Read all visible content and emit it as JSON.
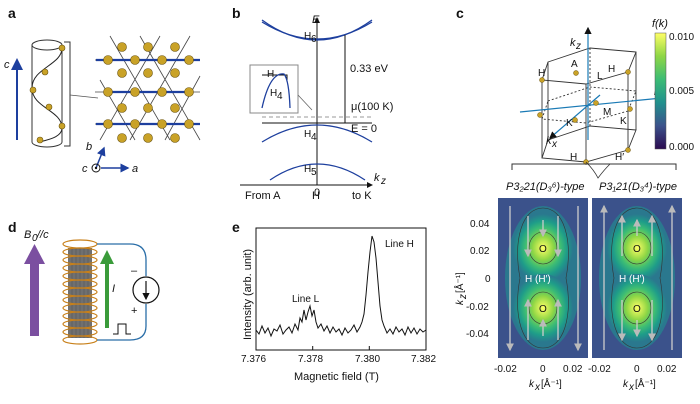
{
  "panels": {
    "a": {
      "label": "a",
      "axis_c": "c",
      "axis_b": "b",
      "axis_c2": "c",
      "axis_a": "a"
    },
    "b": {
      "label": "b",
      "energy_axis": "E",
      "kz_axis": "k",
      "kz_sub": "z",
      "band_H6": "H",
      "band_H6_sub": "6",
      "band_H4": "H",
      "band_H4_sub": "4",
      "band_H5": "H",
      "band_H5_sub": "5",
      "inset_H": "H",
      "inset_H4": "H",
      "inset_H4_sub": "4",
      "gap": "0.33 eV",
      "mu_label": "μ(100 K)",
      "zero_label": "E = 0",
      "zero_tick": "0",
      "from_label": "From A",
      "h_label": "H",
      "to_label": "to K"
    },
    "c": {
      "label": "c",
      "colorbar_title": "f(k)",
      "colorbar_ticks": [
        "0.010",
        "0.005",
        "0.000"
      ],
      "colors": [
        "#ffff66",
        "#8ed645",
        "#3cbc75",
        "#1e9c89",
        "#2a788e",
        "#3b528b",
        "#472c7a",
        "#2b0a4f"
      ],
      "bz_labels": {
        "kz": "k",
        "kz_sub": "z",
        "ky": "k",
        "ky_sub": "y",
        "kx": "k",
        "kx_sub": "x",
        "A": "A",
        "H1": "H",
        "H2": "H",
        "L": "L",
        "M": "M",
        "K1": "K",
        "K2": "K",
        "H3": "H",
        "Hp": "H′"
      },
      "map_left_title": "P3₂21(D₃⁶)-type",
      "map_right_title": "P3₁21(D₃⁴)-type",
      "center_label": "H (H′)",
      "contour_marker": "O",
      "y_ticks": [
        "0.04",
        "0.02",
        "0",
        "-0.02",
        "-0.04"
      ],
      "x_ticks": [
        "-0.02",
        "0",
        "0.02"
      ],
      "y_axis_label": "k",
      "y_axis_sub": "z",
      "y_axis_unit": "[Å⁻¹]",
      "x_axis_label": "k",
      "x_axis_sub": "x",
      "x_axis_unit": "[Å⁻¹]"
    },
    "d": {
      "label": "d",
      "field_label": "B",
      "field_sub": "0",
      "field_suffix": "//c",
      "current_label": "I",
      "minus": "–",
      "plus": "+"
    },
    "e": {
      "label": "e",
      "y_label": "Intensity (arb. unit)",
      "x_label": "Magnetic field (T)",
      "x_ticks": [
        "7.376",
        "7.378",
        "7.380",
        "7.382"
      ],
      "line_L": "Line L",
      "line_H": "Line H"
    }
  }
}
